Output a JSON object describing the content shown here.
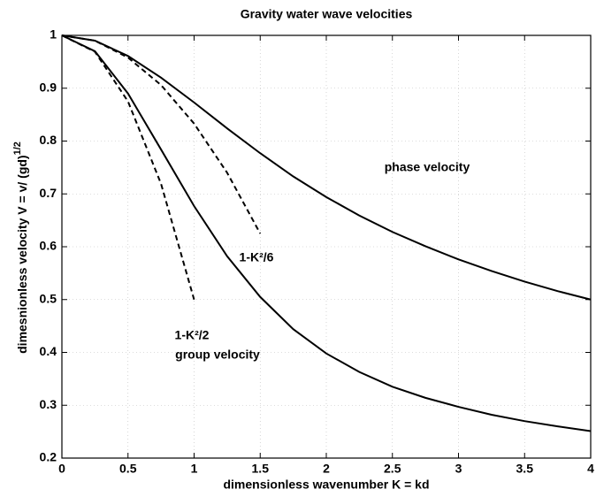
{
  "chart_data": {
    "type": "line",
    "title": "Gravity water wave velocities",
    "xlabel": "dimensionless wavenumber K = kd",
    "ylabel": "dimesnionless velocity V = v/ (gd)",
    "ylabel_sup": "1/2",
    "xlim": [
      0,
      4
    ],
    "ylim": [
      0.2,
      1
    ],
    "xticks": [
      0,
      0.5,
      1,
      1.5,
      2,
      2.5,
      3,
      3.5,
      4
    ],
    "yticks": [
      0.2,
      0.3,
      0.4,
      0.5,
      0.6,
      0.7,
      0.8,
      0.9,
      1
    ],
    "grid": true,
    "series": [
      {
        "name": "phase velocity",
        "color": "#000000",
        "dash": false,
        "x": [
          0,
          0.25,
          0.5,
          0.75,
          1,
          1.25,
          1.5,
          1.75,
          2,
          2.25,
          2.5,
          2.75,
          3,
          3.25,
          3.5,
          3.75,
          4
        ],
        "values": [
          1,
          0.99,
          0.961,
          0.92,
          0.873,
          0.824,
          0.777,
          0.733,
          0.694,
          0.659,
          0.628,
          0.601,
          0.576,
          0.554,
          0.534,
          0.516,
          0.5
        ]
      },
      {
        "name": "group velocity",
        "color": "#000000",
        "dash": false,
        "x": [
          0,
          0.25,
          0.5,
          0.75,
          1,
          1.25,
          1.5,
          1.75,
          2,
          2.25,
          2.5,
          2.75,
          3,
          3.25,
          3.5,
          3.75,
          4
        ],
        "values": [
          1,
          0.97,
          0.89,
          0.784,
          0.677,
          0.582,
          0.505,
          0.444,
          0.398,
          0.363,
          0.335,
          0.314,
          0.297,
          0.282,
          0.27,
          0.26,
          0.251
        ]
      },
      {
        "name": "1-K²/6",
        "color": "#000000",
        "dash": true,
        "x": [
          0,
          0.25,
          0.5,
          0.75,
          1,
          1.25,
          1.5
        ],
        "values": [
          1,
          0.99,
          0.958,
          0.906,
          0.833,
          0.74,
          0.625
        ]
      },
      {
        "name": "1-K²/2",
        "color": "#000000",
        "dash": true,
        "x": [
          0,
          0.25,
          0.5,
          0.75,
          1
        ],
        "values": [
          1,
          0.969,
          0.875,
          0.719,
          0.5
        ]
      }
    ]
  }
}
